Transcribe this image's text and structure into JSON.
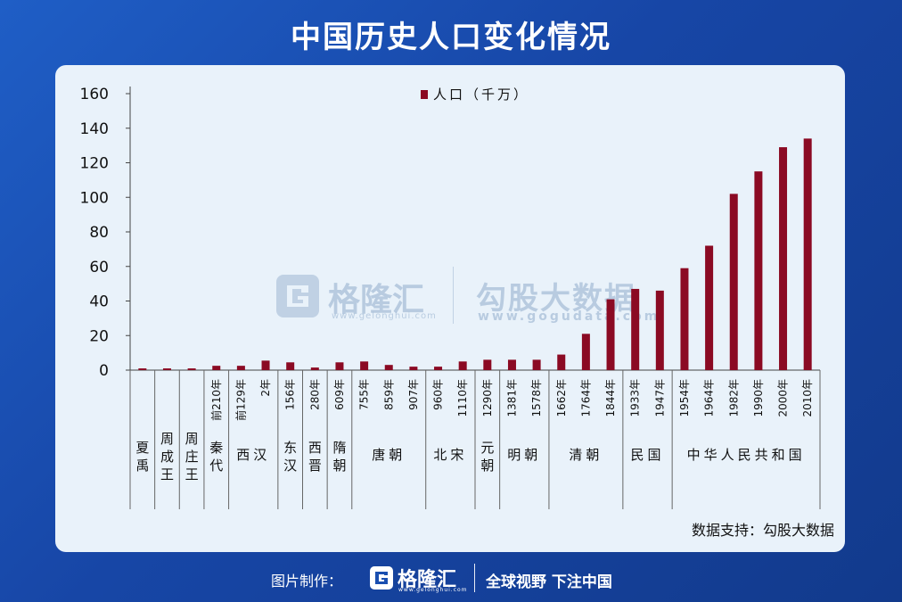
{
  "title": "中国历史人口变化情况",
  "source": "数据支持：勾股大数据",
  "footer": {
    "made_by": "图片制作：",
    "brand": "格隆汇",
    "brand_url": "www.gelonghui.com",
    "slogan": "全球视野 下注中国"
  },
  "watermark": {
    "brand1": "格隆汇",
    "url1": "www.gelonghui.com",
    "brand2": "勾股大数据",
    "url2": "www.gogudata.com"
  },
  "colors": {
    "bar": "#8b0a23",
    "panel": "#e9f2fa",
    "background": "#1a4fb0"
  },
  "chart_data": {
    "type": "bar",
    "legend": "人口（千万）",
    "legend_position": "top-center",
    "ylim": [
      0,
      160
    ],
    "yticks": [
      0,
      20,
      40,
      60,
      80,
      100,
      120,
      140,
      160
    ],
    "grid": false,
    "categories": [
      "",
      "",
      "",
      "前210年",
      "前129年",
      "2年",
      "156年",
      "280年",
      "609年",
      "755年",
      "859年",
      "907年",
      "960年",
      "1110年",
      "1290年",
      "1381年",
      "1578年",
      "1662年",
      "1764年",
      "1844年",
      "1933年",
      "1947年",
      "1954年",
      "1964年",
      "1982年",
      "1990年",
      "2000年",
      "2010年"
    ],
    "values": [
      1,
      1,
      1,
      2.5,
      2.5,
      5.5,
      4.5,
      1.5,
      4.5,
      5,
      3,
      2,
      2,
      5,
      6,
      6,
      6,
      9,
      21,
      41,
      47,
      46,
      59,
      72,
      102,
      115,
      129,
      134
    ],
    "dynasties": [
      {
        "label": "夏禹",
        "start": 0,
        "end": 0
      },
      {
        "label": "周成王",
        "start": 1,
        "end": 1
      },
      {
        "label": "周庄王",
        "start": 2,
        "end": 2
      },
      {
        "label": "秦代",
        "start": 3,
        "end": 3
      },
      {
        "label": "西汉",
        "start": 4,
        "end": 5
      },
      {
        "label": "东汉",
        "start": 6,
        "end": 6
      },
      {
        "label": "西晋",
        "start": 7,
        "end": 7
      },
      {
        "label": "隋朝",
        "start": 8,
        "end": 8
      },
      {
        "label": "唐朝",
        "start": 9,
        "end": 11
      },
      {
        "label": "北宋",
        "start": 12,
        "end": 13
      },
      {
        "label": "元朝",
        "start": 14,
        "end": 14
      },
      {
        "label": "明朝",
        "start": 15,
        "end": 16
      },
      {
        "label": "清朝",
        "start": 17,
        "end": 19
      },
      {
        "label": "民国",
        "start": 20,
        "end": 21
      },
      {
        "label": "中华人民共和国",
        "start": 22,
        "end": 27
      }
    ]
  }
}
